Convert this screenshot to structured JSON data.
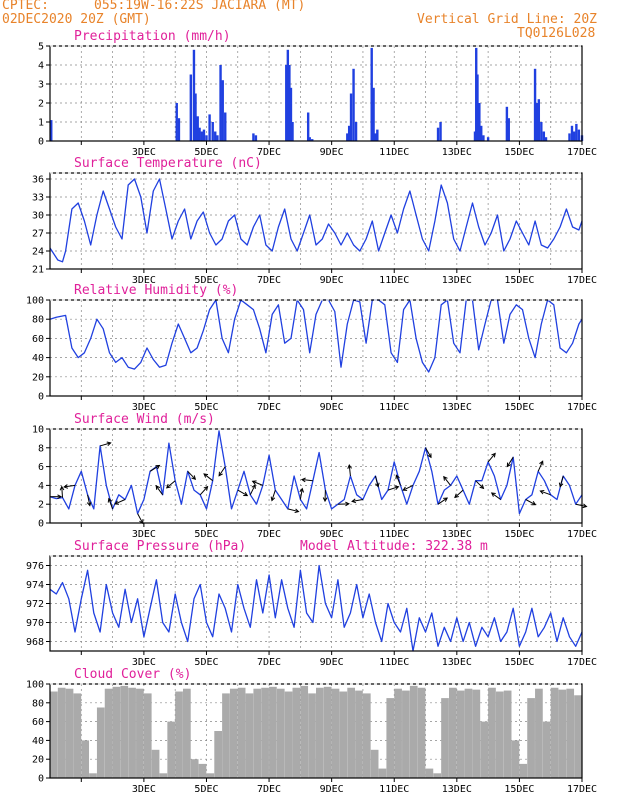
{
  "header": {
    "source": "CPTEC:",
    "location": "055:19W-16:22S  JACIARA (MT)",
    "run": "02DEC2020 20Z (GMT)",
    "grid_line": "Vertical Grid Line: 20Z",
    "model": "TQ0126L028"
  },
  "colors": {
    "header": "#e8832a",
    "title": "#e0209a",
    "series": "#2040e0",
    "cloud": "#aaaaaa",
    "arrow": "#000000"
  },
  "x_labels": [
    "3DEC",
    "5DEC",
    "7DEC",
    "9DEC",
    "11DEC",
    "13DEC",
    "15DEC",
    "17DEC"
  ],
  "chart_data": [
    {
      "type": "bar",
      "title": "Precipitation (mm/h)",
      "ylim": [
        0,
        5
      ],
      "yticks": [
        0,
        1,
        2,
        3,
        4,
        5
      ],
      "x_unit": "days since 02DEC2020 20Z",
      "x": [
        0.04,
        4.05,
        4.12,
        4.5,
        4.6,
        4.65,
        4.72,
        4.78,
        4.85,
        4.92,
        5.0,
        5.1,
        5.2,
        5.28,
        5.35,
        5.45,
        5.52,
        5.6,
        6.5,
        6.58,
        7.55,
        7.6,
        7.65,
        7.7,
        7.75,
        8.25,
        8.3,
        8.38,
        9.5,
        9.56,
        9.62,
        9.7,
        9.78,
        10.28,
        10.34,
        10.4,
        10.46,
        12.4,
        12.48,
        13.58,
        13.62,
        13.66,
        13.72,
        13.78,
        13.85,
        14.0,
        14.6,
        14.66,
        15.5,
        15.56,
        15.62,
        15.7,
        15.78,
        15.85,
        16.6,
        16.68,
        16.75,
        16.82,
        16.9,
        17.0
      ],
      "values": [
        1.1,
        2.0,
        1.2,
        3.5,
        4.8,
        2.5,
        1.3,
        0.7,
        0.5,
        0.6,
        0.3,
        1.4,
        1.0,
        0.5,
        0.3,
        4.0,
        3.2,
        1.5,
        0.4,
        0.3,
        4.0,
        4.8,
        4.0,
        2.8,
        1.0,
        1.5,
        0.2,
        0.1,
        0.4,
        0.8,
        2.5,
        3.8,
        1.0,
        4.9,
        2.8,
        0.4,
        0.6,
        0.7,
        1.0,
        0.5,
        4.9,
        3.5,
        2.0,
        0.8,
        0.3,
        0.2,
        1.8,
        1.2,
        3.8,
        2.0,
        2.2,
        1.0,
        0.5,
        0.2,
        0.4,
        0.8,
        0.5,
        0.9,
        0.6,
        0.3
      ]
    },
    {
      "type": "line",
      "title": "Surface Temperature (nC)",
      "ylim": [
        21,
        37
      ],
      "yticks": [
        21,
        24,
        27,
        30,
        33,
        36
      ],
      "x_unit": "days since 02DEC2020 20Z",
      "x": [
        0,
        0.25,
        0.4,
        0.5,
        0.7,
        0.9,
        1.1,
        1.3,
        1.5,
        1.7,
        1.9,
        2.1,
        2.3,
        2.5,
        2.7,
        2.9,
        3.1,
        3.3,
        3.5,
        3.7,
        3.9,
        4.1,
        4.3,
        4.5,
        4.7,
        4.9,
        5.1,
        5.3,
        5.5,
        5.7,
        5.9,
        6.1,
        6.3,
        6.5,
        6.7,
        6.9,
        7.1,
        7.3,
        7.5,
        7.7,
        7.9,
        8.1,
        8.3,
        8.5,
        8.7,
        8.9,
        9.1,
        9.3,
        9.5,
        9.7,
        9.9,
        10.1,
        10.3,
        10.5,
        10.7,
        10.9,
        11.1,
        11.3,
        11.5,
        11.7,
        11.9,
        12.1,
        12.3,
        12.5,
        12.7,
        12.9,
        13.1,
        13.3,
        13.5,
        13.7,
        13.9,
        14.1,
        14.3,
        14.5,
        14.7,
        14.9,
        15.1,
        15.3,
        15.5,
        15.7,
        15.9,
        16.1,
        16.3,
        16.5,
        16.7,
        16.9,
        17.0
      ],
      "values": [
        24.5,
        22.5,
        22.2,
        24,
        31,
        32,
        29,
        25,
        30,
        34,
        31,
        28,
        26,
        35,
        36,
        33,
        27,
        34,
        36,
        31,
        26,
        29,
        31,
        26,
        29,
        30.5,
        27,
        25,
        26,
        29,
        30,
        26,
        25,
        28,
        30,
        25,
        24,
        28,
        31,
        26,
        24,
        27,
        30,
        25,
        26,
        28.5,
        27,
        25,
        27,
        25,
        24,
        26,
        29,
        24,
        27,
        30,
        27,
        31,
        34,
        30,
        26,
        24,
        29,
        35,
        32,
        26,
        24,
        28,
        32,
        28,
        25,
        27,
        30,
        24,
        26,
        29,
        27,
        25,
        29,
        25,
        24.5,
        26,
        28,
        31,
        28,
        27.5,
        29
      ]
    },
    {
      "type": "line",
      "title": "Relative Humidity (%)",
      "ylim": [
        0,
        100
      ],
      "yticks": [
        0,
        20,
        40,
        60,
        80,
        100
      ],
      "x_unit": "days since 02DEC2020 20Z",
      "x": [
        0,
        0.2,
        0.5,
        0.7,
        0.9,
        1.1,
        1.3,
        1.5,
        1.7,
        1.9,
        2.1,
        2.3,
        2.5,
        2.7,
        2.9,
        3.1,
        3.3,
        3.5,
        3.7,
        3.9,
        4.1,
        4.3,
        4.5,
        4.7,
        4.9,
        5.1,
        5.3,
        5.5,
        5.7,
        5.9,
        6.1,
        6.3,
        6.5,
        6.7,
        6.9,
        7.1,
        7.3,
        7.5,
        7.7,
        7.9,
        8.1,
        8.3,
        8.5,
        8.7,
        8.9,
        9.1,
        9.3,
        9.5,
        9.7,
        9.9,
        10.1,
        10.3,
        10.5,
        10.7,
        10.9,
        11.1,
        11.3,
        11.5,
        11.7,
        11.9,
        12.1,
        12.3,
        12.5,
        12.7,
        12.9,
        13.1,
        13.3,
        13.5,
        13.7,
        13.9,
        14.1,
        14.3,
        14.5,
        14.7,
        14.9,
        15.1,
        15.3,
        15.5,
        15.7,
        15.9,
        16.1,
        16.3,
        16.5,
        16.7,
        16.9,
        17.0
      ],
      "values": [
        80,
        82,
        84,
        50,
        40,
        45,
        60,
        80,
        70,
        45,
        35,
        40,
        30,
        28,
        35,
        50,
        38,
        30,
        32,
        55,
        75,
        60,
        45,
        50,
        68,
        90,
        100,
        60,
        45,
        80,
        100,
        95,
        90,
        70,
        45,
        85,
        95,
        55,
        60,
        100,
        90,
        45,
        85,
        100,
        100,
        88,
        30,
        75,
        100,
        98,
        55,
        100,
        100,
        95,
        45,
        35,
        90,
        100,
        60,
        35,
        25,
        40,
        95,
        100,
        55,
        45,
        100,
        100,
        48,
        75,
        100,
        100,
        55,
        85,
        95,
        90,
        60,
        40,
        75,
        100,
        95,
        50,
        45,
        55,
        75,
        80
      ]
    },
    {
      "type": "line",
      "title": "Surface Wind (m/s)",
      "ylim": [
        0,
        10
      ],
      "yticks": [
        0,
        2,
        4,
        6,
        8,
        10
      ],
      "x_unit": "days since 02DEC2020 20Z",
      "x": [
        0,
        0.2,
        0.4,
        0.6,
        0.8,
        1.0,
        1.2,
        1.4,
        1.6,
        1.8,
        2.0,
        2.2,
        2.4,
        2.6,
        2.8,
        3.0,
        3.2,
        3.4,
        3.6,
        3.8,
        4.0,
        4.2,
        4.4,
        4.6,
        4.8,
        5.0,
        5.2,
        5.4,
        5.6,
        5.8,
        6.0,
        6.2,
        6.4,
        6.6,
        6.8,
        7.0,
        7.2,
        7.4,
        7.6,
        7.8,
        8.0,
        8.2,
        8.4,
        8.6,
        8.8,
        9.0,
        9.2,
        9.4,
        9.6,
        9.8,
        10.0,
        10.2,
        10.4,
        10.6,
        10.8,
        11.0,
        11.2,
        11.4,
        11.6,
        11.8,
        12.0,
        12.2,
        12.4,
        12.6,
        12.8,
        13.0,
        13.2,
        13.4,
        13.6,
        13.8,
        14.0,
        14.2,
        14.4,
        14.6,
        14.8,
        15.0,
        15.2,
        15.4,
        15.6,
        15.8,
        16.0,
        16.2,
        16.4,
        16.6,
        16.8,
        17.0
      ],
      "values": [
        2.8,
        2.6,
        2.7,
        1.5,
        4.0,
        5.5,
        3.0,
        1.5,
        8.2,
        4.0,
        1.5,
        3.0,
        2.5,
        4.0,
        1.0,
        2.5,
        5.5,
        6.0,
        3.0,
        8.5,
        4.5,
        2.0,
        5.5,
        3.5,
        3.0,
        1.5,
        4.5,
        9.8,
        6.0,
        1.5,
        3.5,
        5.5,
        3.0,
        2.0,
        4.0,
        7.2,
        3.5,
        2.5,
        1.5,
        5.0,
        2.5,
        1.5,
        4.5,
        7.5,
        3.5,
        1.5,
        2.0,
        2.5,
        5.0,
        3.0,
        2.5,
        4.0,
        5.0,
        2.5,
        3.5,
        6.5,
        4.0,
        2.0,
        4.0,
        5.5,
        8.0,
        5.5,
        2.0,
        3.5,
        4.0,
        5.0,
        3.5,
        2.0,
        4.5,
        4.5,
        6.5,
        5.0,
        2.5,
        4.0,
        7.0,
        1.0,
        2.5,
        3.0,
        5.5,
        4.5,
        3.0,
        2.5,
        5.0,
        4.0,
        2.0,
        3.0
      ]
    },
    {
      "type": "line",
      "title": "Surface Pressure (hPa)",
      "annotation": "Model Altitude: 322.38 m",
      "ylim": [
        967,
        977
      ],
      "yticks": [
        968,
        970,
        972,
        974,
        976
      ],
      "x_unit": "days since 02DEC2020 20Z",
      "x": [
        0,
        0.2,
        0.4,
        0.6,
        0.8,
        1.0,
        1.2,
        1.4,
        1.6,
        1.8,
        2.0,
        2.2,
        2.4,
        2.6,
        2.8,
        3.0,
        3.2,
        3.4,
        3.6,
        3.8,
        4.0,
        4.2,
        4.4,
        4.6,
        4.8,
        5.0,
        5.2,
        5.4,
        5.6,
        5.8,
        6.0,
        6.2,
        6.4,
        6.6,
        6.8,
        7.0,
        7.2,
        7.4,
        7.6,
        7.8,
        8.0,
        8.2,
        8.4,
        8.6,
        8.8,
        9.0,
        9.2,
        9.4,
        9.6,
        9.8,
        10.0,
        10.2,
        10.4,
        10.6,
        10.8,
        11.0,
        11.2,
        11.4,
        11.6,
        11.8,
        12.0,
        12.2,
        12.4,
        12.6,
        12.8,
        13.0,
        13.2,
        13.4,
        13.6,
        13.8,
        14.0,
        14.2,
        14.4,
        14.6,
        14.8,
        15.0,
        15.2,
        15.4,
        15.6,
        15.8,
        16.0,
        16.2,
        16.4,
        16.6,
        16.8,
        17.0
      ],
      "values": [
        973.5,
        973.0,
        974.2,
        972.5,
        969.0,
        972.5,
        975.5,
        971.0,
        969.0,
        974.0,
        971.0,
        969.5,
        973.5,
        970.0,
        972.5,
        968.5,
        971.5,
        974.5,
        970.0,
        969.0,
        973.0,
        970.0,
        968.0,
        972.5,
        974.0,
        970.0,
        968.5,
        973.0,
        971.5,
        969.0,
        974.0,
        971.5,
        969.5,
        974.5,
        971.0,
        975.0,
        970.5,
        974.5,
        971.5,
        969.5,
        975.5,
        971.0,
        970.0,
        976.0,
        972.0,
        970.5,
        974.5,
        969.5,
        971.0,
        974.0,
        970.5,
        973.0,
        970.0,
        968.0,
        972.0,
        970.0,
        969.0,
        971.5,
        967.0,
        970.5,
        969.0,
        971.0,
        967.5,
        969.5,
        968.0,
        970.5,
        968.0,
        970.0,
        967.5,
        969.5,
        968.5,
        970.5,
        968.0,
        969.0,
        971.5,
        967.5,
        969.0,
        971.5,
        968.5,
        969.5,
        971.0,
        968.0,
        970.5,
        968.5,
        967.5,
        969.0
      ]
    },
    {
      "type": "bar",
      "title": "Cloud Cover (%)",
      "ylim": [
        0,
        100
      ],
      "yticks": [
        0,
        20,
        40,
        60,
        80,
        100
      ],
      "x_unit": "days since 02DEC2020 20Z",
      "x": [
        0.0,
        0.25,
        0.5,
        0.75,
        1.0,
        1.25,
        1.5,
        1.75,
        2.0,
        2.25,
        2.5,
        2.75,
        3.0,
        3.25,
        3.5,
        3.75,
        4.0,
        4.25,
        4.5,
        4.75,
        5.0,
        5.25,
        5.5,
        5.75,
        6.0,
        6.25,
        6.5,
        6.75,
        7.0,
        7.25,
        7.5,
        7.75,
        8.0,
        8.25,
        8.5,
        8.75,
        9.0,
        9.25,
        9.5,
        9.75,
        10.0,
        10.25,
        10.5,
        10.75,
        11.0,
        11.25,
        11.5,
        11.75,
        12.0,
        12.25,
        12.5,
        12.75,
        13.0,
        13.25,
        13.5,
        13.75,
        14.0,
        14.25,
        14.5,
        14.75,
        15.0,
        15.25,
        15.5,
        15.75,
        16.0,
        16.25,
        16.5,
        16.75,
        17.0
      ],
      "values": [
        92,
        96,
        95,
        90,
        40,
        5,
        75,
        95,
        97,
        98,
        96,
        95,
        90,
        30,
        5,
        60,
        92,
        95,
        20,
        15,
        5,
        50,
        90,
        95,
        96,
        90,
        95,
        96,
        97,
        95,
        92,
        96,
        98,
        90,
        96,
        97,
        95,
        92,
        96,
        93,
        90,
        30,
        10,
        85,
        95,
        93,
        98,
        96,
        10,
        5,
        85,
        96,
        93,
        95,
        94,
        60,
        96,
        92,
        93,
        40,
        15,
        85,
        95,
        60,
        96,
        94,
        95,
        88,
        96
      ]
    }
  ]
}
